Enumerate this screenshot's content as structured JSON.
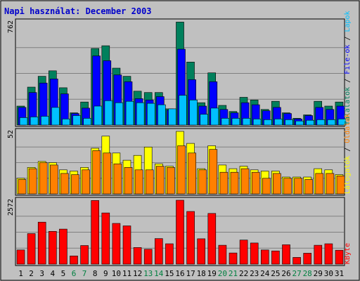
{
  "title": "Napi használat: December 2003",
  "colors": {
    "background": "#c0c0c0",
    "title": "#0000cc",
    "hits": "#00805c",
    "files": "#0000ff",
    "pages": "#00c0ff",
    "visits": "#ffff00",
    "sites": "#ff8000",
    "kbytes": "#ff0000",
    "weekend_day": "#008040",
    "weekday": "#000000"
  },
  "chart_data": [
    {
      "type": "bar",
      "panel": "top",
      "ymax_label": "762",
      "ylim": [
        0,
        762
      ],
      "right_label_parts": [
        {
          "text": "Találatok",
          "series": "hits"
        },
        {
          "text": " / ",
          "series": "sep"
        },
        {
          "text": "File-ok",
          "series": "files"
        },
        {
          "text": " / ",
          "series": "sep"
        },
        {
          "text": "Lapok",
          "series": "pages"
        }
      ],
      "categories": [
        "1",
        "2",
        "3",
        "4",
        "5",
        "6",
        "7",
        "8",
        "9",
        "10",
        "11",
        "12",
        "13",
        "14",
        "15",
        "16",
        "17",
        "18",
        "19",
        "20",
        "21",
        "22",
        "23",
        "24",
        "25",
        "26",
        "27",
        "28",
        "29",
        "30",
        "31"
      ],
      "series": [
        {
          "name": "Találatok",
          "key": "hits",
          "values": [
            140,
            280,
            360,
            400,
            275,
            90,
            170,
            565,
            585,
            420,
            360,
            250,
            240,
            240,
            120,
            760,
            465,
            165,
            385,
            145,
            100,
            205,
            185,
            115,
            175,
            90,
            50,
            75,
            175,
            140,
            170
          ]
        },
        {
          "name": "File-ok",
          "key": "files",
          "values": [
            130,
            240,
            310,
            340,
            230,
            85,
            125,
            510,
            475,
            370,
            320,
            195,
            185,
            210,
            110,
            560,
            335,
            140,
            320,
            115,
            90,
            165,
            150,
            105,
            130,
            85,
            45,
            70,
            130,
            115,
            140
          ]
        },
        {
          "name": "Lapok",
          "key": "pages",
          "values": [
            55,
            60,
            65,
            130,
            45,
            70,
            50,
            140,
            180,
            165,
            175,
            165,
            160,
            150,
            120,
            220,
            185,
            80,
            125,
            50,
            50,
            50,
            45,
            40,
            45,
            40,
            30,
            35,
            40,
            40,
            45
          ]
        }
      ]
    },
    {
      "type": "bar",
      "panel": "middle",
      "ymax_label": "52",
      "ylim": [
        0,
        52
      ],
      "right_label_parts": [
        {
          "text": "Látogatók",
          "series": "visits"
        },
        {
          "text": " / ",
          "series": "sep"
        },
        {
          "text": "Oldalak",
          "series": "sites"
        }
      ],
      "categories": [
        "1",
        "2",
        "3",
        "4",
        "5",
        "6",
        "7",
        "8",
        "9",
        "10",
        "11",
        "12",
        "13",
        "14",
        "15",
        "16",
        "17",
        "18",
        "19",
        "20",
        "21",
        "22",
        "23",
        "24",
        "25",
        "26",
        "27",
        "28",
        "29",
        "30",
        "31"
      ],
      "series": [
        {
          "name": "Látogatók",
          "key": "visits",
          "values": [
            13,
            22,
            27,
            26,
            20,
            19,
            22,
            38,
            48,
            34,
            28,
            32,
            39,
            25,
            23,
            52,
            42,
            21,
            40,
            24,
            21,
            23,
            20,
            19,
            19,
            14,
            14,
            14,
            21,
            20,
            16
          ]
        },
        {
          "name": "Oldalak",
          "key": "sites",
          "values": [
            12,
            21,
            26,
            24,
            17,
            16,
            20,
            36,
            34,
            25,
            22,
            20,
            20,
            23,
            22,
            40,
            34,
            20,
            37,
            18,
            18,
            21,
            18,
            13,
            17,
            13,
            13,
            12,
            17,
            17,
            15
          ]
        }
      ]
    },
    {
      "type": "bar",
      "panel": "bottom",
      "ymax_label": "2572",
      "ylim": [
        0,
        2572
      ],
      "right_label_parts": [
        {
          "text": "KByte",
          "series": "kbytes"
        }
      ],
      "categories": [
        "1",
        "2",
        "3",
        "4",
        "5",
        "6",
        "7",
        "8",
        "9",
        "10",
        "11",
        "12",
        "13",
        "14",
        "15",
        "16",
        "17",
        "18",
        "19",
        "20",
        "21",
        "22",
        "23",
        "24",
        "25",
        "26",
        "27",
        "28",
        "29",
        "30",
        "31"
      ],
      "series": [
        {
          "name": "KByte",
          "key": "kbytes",
          "values": [
            570,
            1230,
            1690,
            1320,
            1410,
            330,
            750,
            2560,
            2060,
            1640,
            1540,
            670,
            600,
            1030,
            820,
            2572,
            2120,
            1020,
            2040,
            760,
            450,
            970,
            850,
            570,
            530,
            780,
            270,
            440,
            760,
            820,
            560
          ]
        }
      ]
    }
  ],
  "x_axis": {
    "labels": [
      "1",
      "2",
      "3",
      "4",
      "5",
      "6",
      "7",
      "8",
      "9",
      "10",
      "11",
      "12",
      "13",
      "14",
      "15",
      "16",
      "17",
      "18",
      "19",
      "20",
      "21",
      "22",
      "23",
      "24",
      "25",
      "26",
      "27",
      "28",
      "29",
      "30",
      "31"
    ],
    "weekend": [
      6,
      7,
      13,
      14,
      20,
      21,
      27,
      28
    ]
  }
}
